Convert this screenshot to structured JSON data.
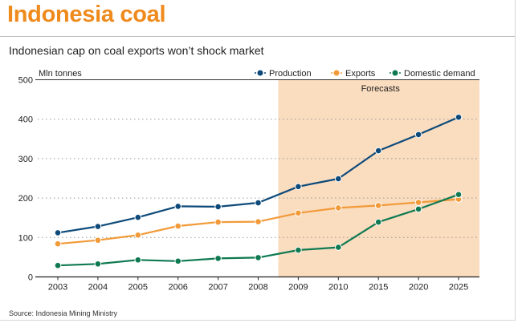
{
  "header": {
    "title": "Indonesia coal",
    "subtitle": "Indonesian cap on coal exports won’t shock market"
  },
  "footer": {
    "source": "Source: Indonesia Mining Ministry"
  },
  "colors": {
    "production": "#0d4a7a",
    "exports": "#f29a38",
    "domestic": "#0f7a52",
    "forecast_band": "#fadcbf",
    "title": "#ef8a1d"
  },
  "chart_data": {
    "type": "line",
    "title": "Indonesian cap on coal exports won’t shock market",
    "xlabel": "",
    "ylabel": "Mln tonnes",
    "categories": [
      "2003",
      "2004",
      "2005",
      "2006",
      "2007",
      "2008",
      "2009",
      "2010",
      "2015",
      "2020",
      "2025"
    ],
    "ylim": [
      0,
      500
    ],
    "yticks": [
      0,
      100,
      200,
      300,
      400,
      500
    ],
    "grid": "horizontal dotted",
    "legend_position": "top-right",
    "forecast_region": {
      "label": "Forecasts",
      "from_category": "2009",
      "to_category": "2025"
    },
    "series": [
      {
        "name": "Production",
        "values": [
          112,
          128,
          151,
          179,
          178,
          188,
          229,
          249,
          320,
          361,
          405
        ]
      },
      {
        "name": "Exports",
        "values": [
          84,
          93,
          106,
          129,
          139,
          140,
          162,
          175,
          181,
          189,
          197
        ]
      },
      {
        "name": "Domestic demand",
        "values": [
          29,
          33,
          43,
          40,
          47,
          49,
          68,
          75,
          139,
          172,
          209
        ]
      }
    ]
  }
}
